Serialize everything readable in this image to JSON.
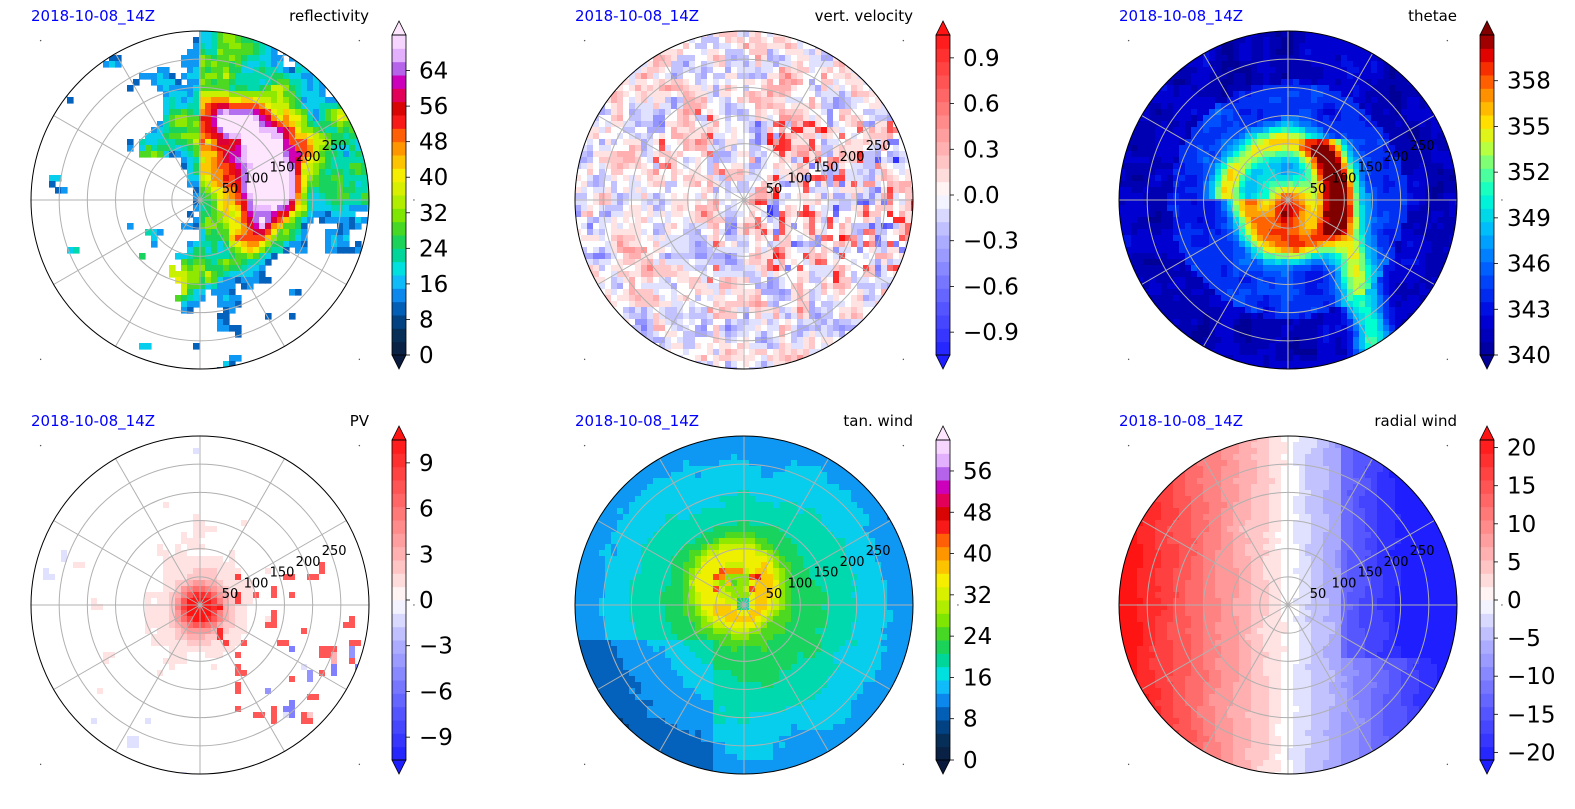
{
  "colors": {
    "date_text": "#0000ff",
    "grid": "#b0b0b0",
    "outline": "#000000"
  },
  "chart_data": [
    {
      "type": "heatmap",
      "projection": "polar",
      "date": "2018-10-08_14Z",
      "title": "reflectivity",
      "radial_ticks": [
        50,
        100,
        150,
        200,
        250
      ],
      "angular_gridlines_deg": [
        0,
        30,
        60,
        90,
        120,
        150,
        180,
        210,
        240,
        270,
        300,
        330
      ],
      "colorbar": {
        "ticks": [
          "0",
          "8",
          "16",
          "24",
          "32",
          "40",
          "48",
          "56",
          "64"
        ],
        "range": [
          0,
          72
        ],
        "extend": "both",
        "colormap": "radar"
      },
      "field_pattern": "reflectivity"
    },
    {
      "type": "heatmap",
      "projection": "polar",
      "date": "2018-10-08_14Z",
      "title": "vert. velocity",
      "radial_ticks": [
        50,
        100,
        150,
        200,
        250
      ],
      "angular_gridlines_deg": [
        0,
        30,
        60,
        90,
        120,
        150,
        180,
        210,
        240,
        270,
        300,
        330
      ],
      "colorbar": {
        "ticks": [
          "0.9",
          "0.6",
          "0.3",
          "0.0",
          "−0.3",
          "−0.6",
          "−0.9"
        ],
        "range": [
          -1.05,
          1.05
        ],
        "extend": "both",
        "colormap": "bwr"
      },
      "field_pattern": "vertical_velocity"
    },
    {
      "type": "heatmap",
      "projection": "polar",
      "date": "2018-10-08_14Z",
      "title": "thetae",
      "radial_ticks": [
        50,
        100,
        150,
        200,
        250
      ],
      "angular_gridlines_deg": [
        0,
        30,
        60,
        90,
        120,
        150,
        180,
        210,
        240,
        270,
        300,
        330
      ],
      "colorbar": {
        "ticks": [
          "358",
          "355",
          "352",
          "349",
          "346",
          "343",
          "340"
        ],
        "range": [
          340,
          361
        ],
        "extend": "both",
        "colormap": "jet"
      },
      "field_pattern": "thetae"
    },
    {
      "type": "heatmap",
      "projection": "polar",
      "date": "2018-10-08_14Z",
      "title": "PV",
      "radial_ticks": [
        50,
        100,
        150,
        200,
        250
      ],
      "angular_gridlines_deg": [
        0,
        30,
        60,
        90,
        120,
        150,
        180,
        210,
        240,
        270,
        300,
        330
      ],
      "colorbar": {
        "ticks": [
          "9",
          "6",
          "3",
          "0",
          "−3",
          "−6",
          "−9"
        ],
        "range": [
          -10.5,
          10.5
        ],
        "extend": "both",
        "colormap": "bwr"
      },
      "field_pattern": "pv"
    },
    {
      "type": "heatmap",
      "projection": "polar",
      "date": "2018-10-08_14Z",
      "title": "tan. wind",
      "radial_ticks": [
        50,
        100,
        150,
        200,
        250
      ],
      "angular_gridlines_deg": [
        0,
        30,
        60,
        90,
        120,
        150,
        180,
        210,
        240,
        270,
        300,
        330
      ],
      "colorbar": {
        "ticks": [
          "56",
          "48",
          "40",
          "32",
          "24",
          "16",
          "8",
          "0"
        ],
        "range": [
          0,
          62
        ],
        "extend": "both",
        "colormap": "radar"
      },
      "field_pattern": "tangential_wind"
    },
    {
      "type": "heatmap",
      "projection": "polar",
      "date": "2018-10-08_14Z",
      "title": "radial wind",
      "radial_ticks": [
        50,
        100,
        150,
        200,
        250
      ],
      "angular_gridlines_deg": [
        0,
        30,
        60,
        90,
        120,
        150,
        180,
        210,
        240,
        270,
        300,
        330
      ],
      "colorbar": {
        "ticks": [
          "20",
          "15",
          "10",
          "5",
          "0",
          "−5",
          "−10",
          "−15",
          "−20"
        ],
        "range": [
          -21,
          21
        ],
        "extend": "both",
        "colormap": "bwr"
      },
      "field_pattern": "radial_wind"
    }
  ]
}
